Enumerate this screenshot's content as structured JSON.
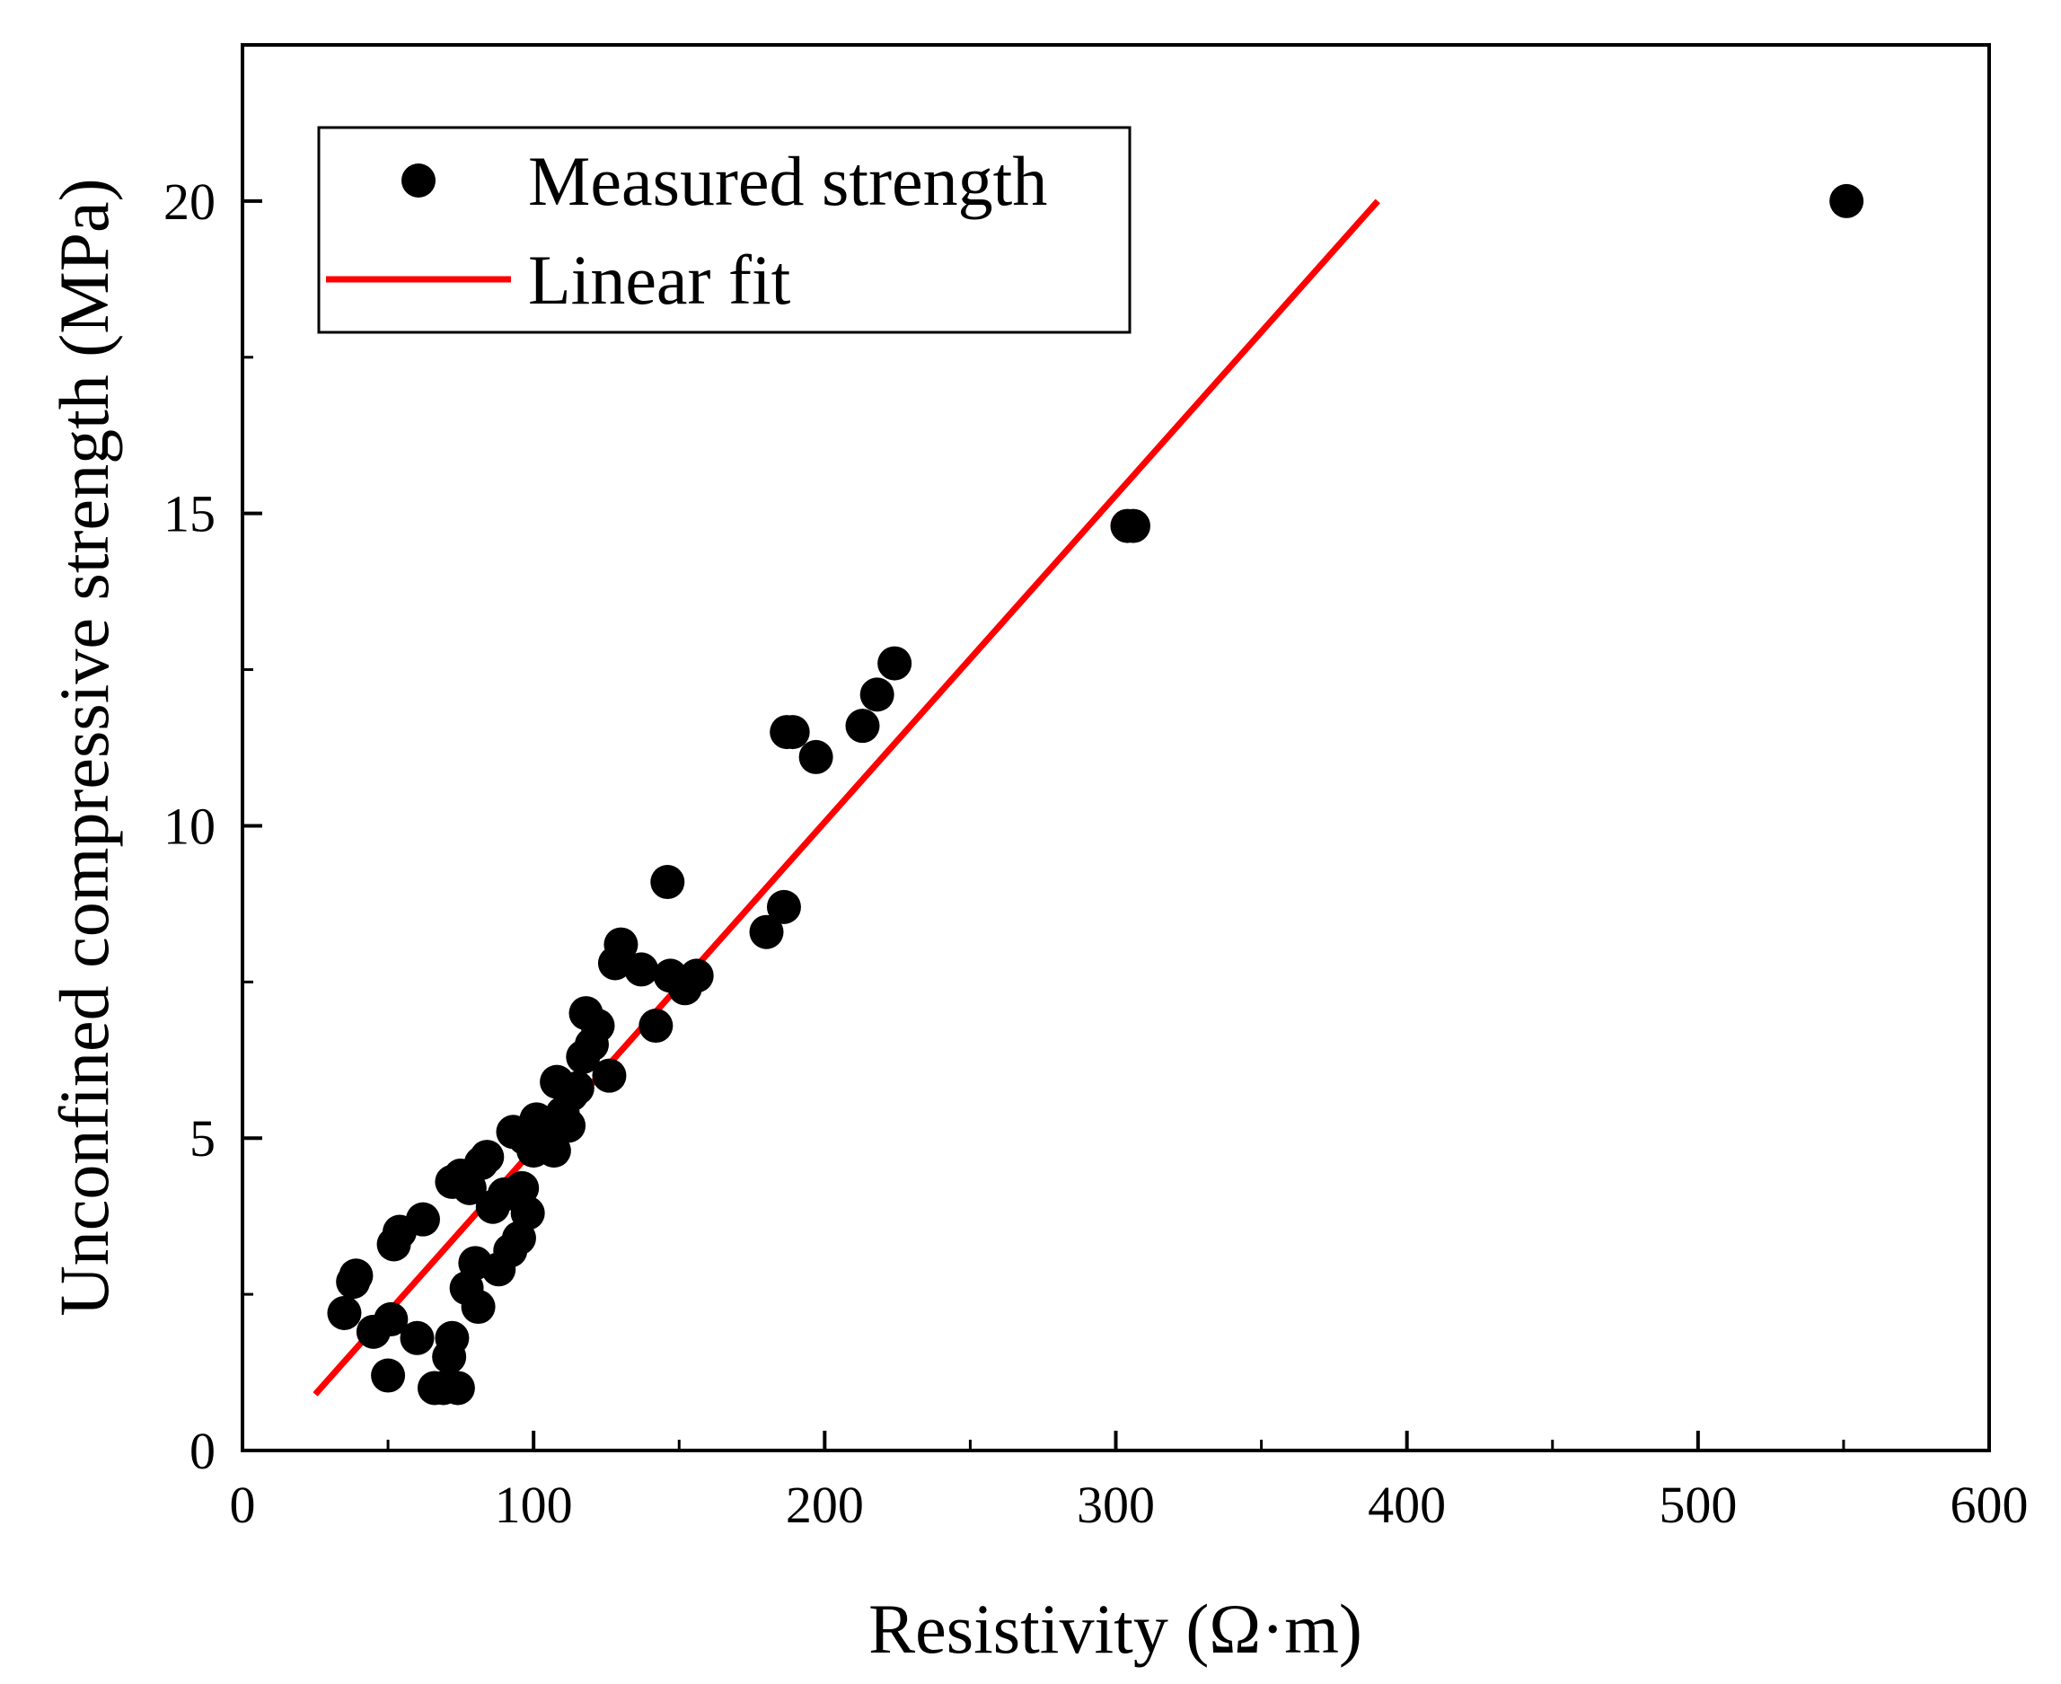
{
  "chart_data": {
    "type": "scatter",
    "title": "",
    "xlabel": "Resistivity (Ω·m)",
    "ylabel": "Unconfined compressive strength (MPa)",
    "xlim": [
      0,
      600
    ],
    "ylim": [
      0,
      22.5
    ],
    "xticks": [
      0,
      100,
      200,
      300,
      400,
      500,
      600
    ],
    "yticks": [
      0,
      5,
      10,
      15,
      20
    ],
    "xtick_labels": [
      "0",
      "100",
      "200",
      "300",
      "400",
      "500",
      "600"
    ],
    "ytick_labels": [
      "0",
      "5",
      "10",
      "15",
      "20"
    ],
    "grid": false,
    "legend_position": "top-left",
    "series": [
      {
        "name": "Measured strength",
        "kind": "scatter",
        "color": "#000000",
        "points": [
          [
            35,
            2.2
          ],
          [
            38,
            2.7
          ],
          [
            39,
            2.8
          ],
          [
            45,
            1.9
          ],
          [
            50,
            1.2
          ],
          [
            51,
            2.1
          ],
          [
            52,
            3.3
          ],
          [
            54,
            3.5
          ],
          [
            60,
            1.8
          ],
          [
            62,
            3.7
          ],
          [
            66,
            1.0
          ],
          [
            69,
            1.0
          ],
          [
            71,
            1.5
          ],
          [
            72,
            1.8
          ],
          [
            72,
            4.3
          ],
          [
            74,
            1.0
          ],
          [
            75,
            4.4
          ],
          [
            77,
            2.6
          ],
          [
            78,
            4.2
          ],
          [
            80,
            3.0
          ],
          [
            81,
            2.3
          ],
          [
            82,
            4.6
          ],
          [
            84,
            4.7
          ],
          [
            86,
            3.9
          ],
          [
            88,
            2.9
          ],
          [
            90,
            4.1
          ],
          [
            92,
            3.2
          ],
          [
            93,
            5.1
          ],
          [
            95,
            3.4
          ],
          [
            96,
            4.2
          ],
          [
            97,
            5.0
          ],
          [
            98,
            3.8
          ],
          [
            100,
            4.8
          ],
          [
            101,
            5.3
          ],
          [
            103,
            5.0
          ],
          [
            105,
            5.2
          ],
          [
            107,
            4.8
          ],
          [
            108,
            5.9
          ],
          [
            110,
            5.4
          ],
          [
            112,
            5.2
          ],
          [
            113,
            5.7
          ],
          [
            115,
            5.8
          ],
          [
            117,
            6.3
          ],
          [
            118,
            7.0
          ],
          [
            120,
            6.5
          ],
          [
            122,
            6.8
          ],
          [
            126,
            6.0
          ],
          [
            128,
            7.8
          ],
          [
            130,
            8.1
          ],
          [
            137,
            7.7
          ],
          [
            142,
            6.8
          ],
          [
            146,
            9.1
          ],
          [
            147,
            7.6
          ],
          [
            152,
            7.4
          ],
          [
            156,
            7.6
          ],
          [
            180,
            8.3
          ],
          [
            186,
            8.7
          ],
          [
            187,
            11.5
          ],
          [
            189,
            11.5
          ],
          [
            197,
            11.1
          ],
          [
            213,
            11.6
          ],
          [
            218,
            12.1
          ],
          [
            224,
            12.6
          ],
          [
            304,
            14.8
          ],
          [
            306,
            14.8
          ],
          [
            551,
            20.0
          ]
        ]
      },
      {
        "name": "Linear fit",
        "kind": "line",
        "color": "#ff0000",
        "points": [
          [
            25,
            0.9
          ],
          [
            390,
            20.0
          ]
        ]
      }
    ]
  }
}
